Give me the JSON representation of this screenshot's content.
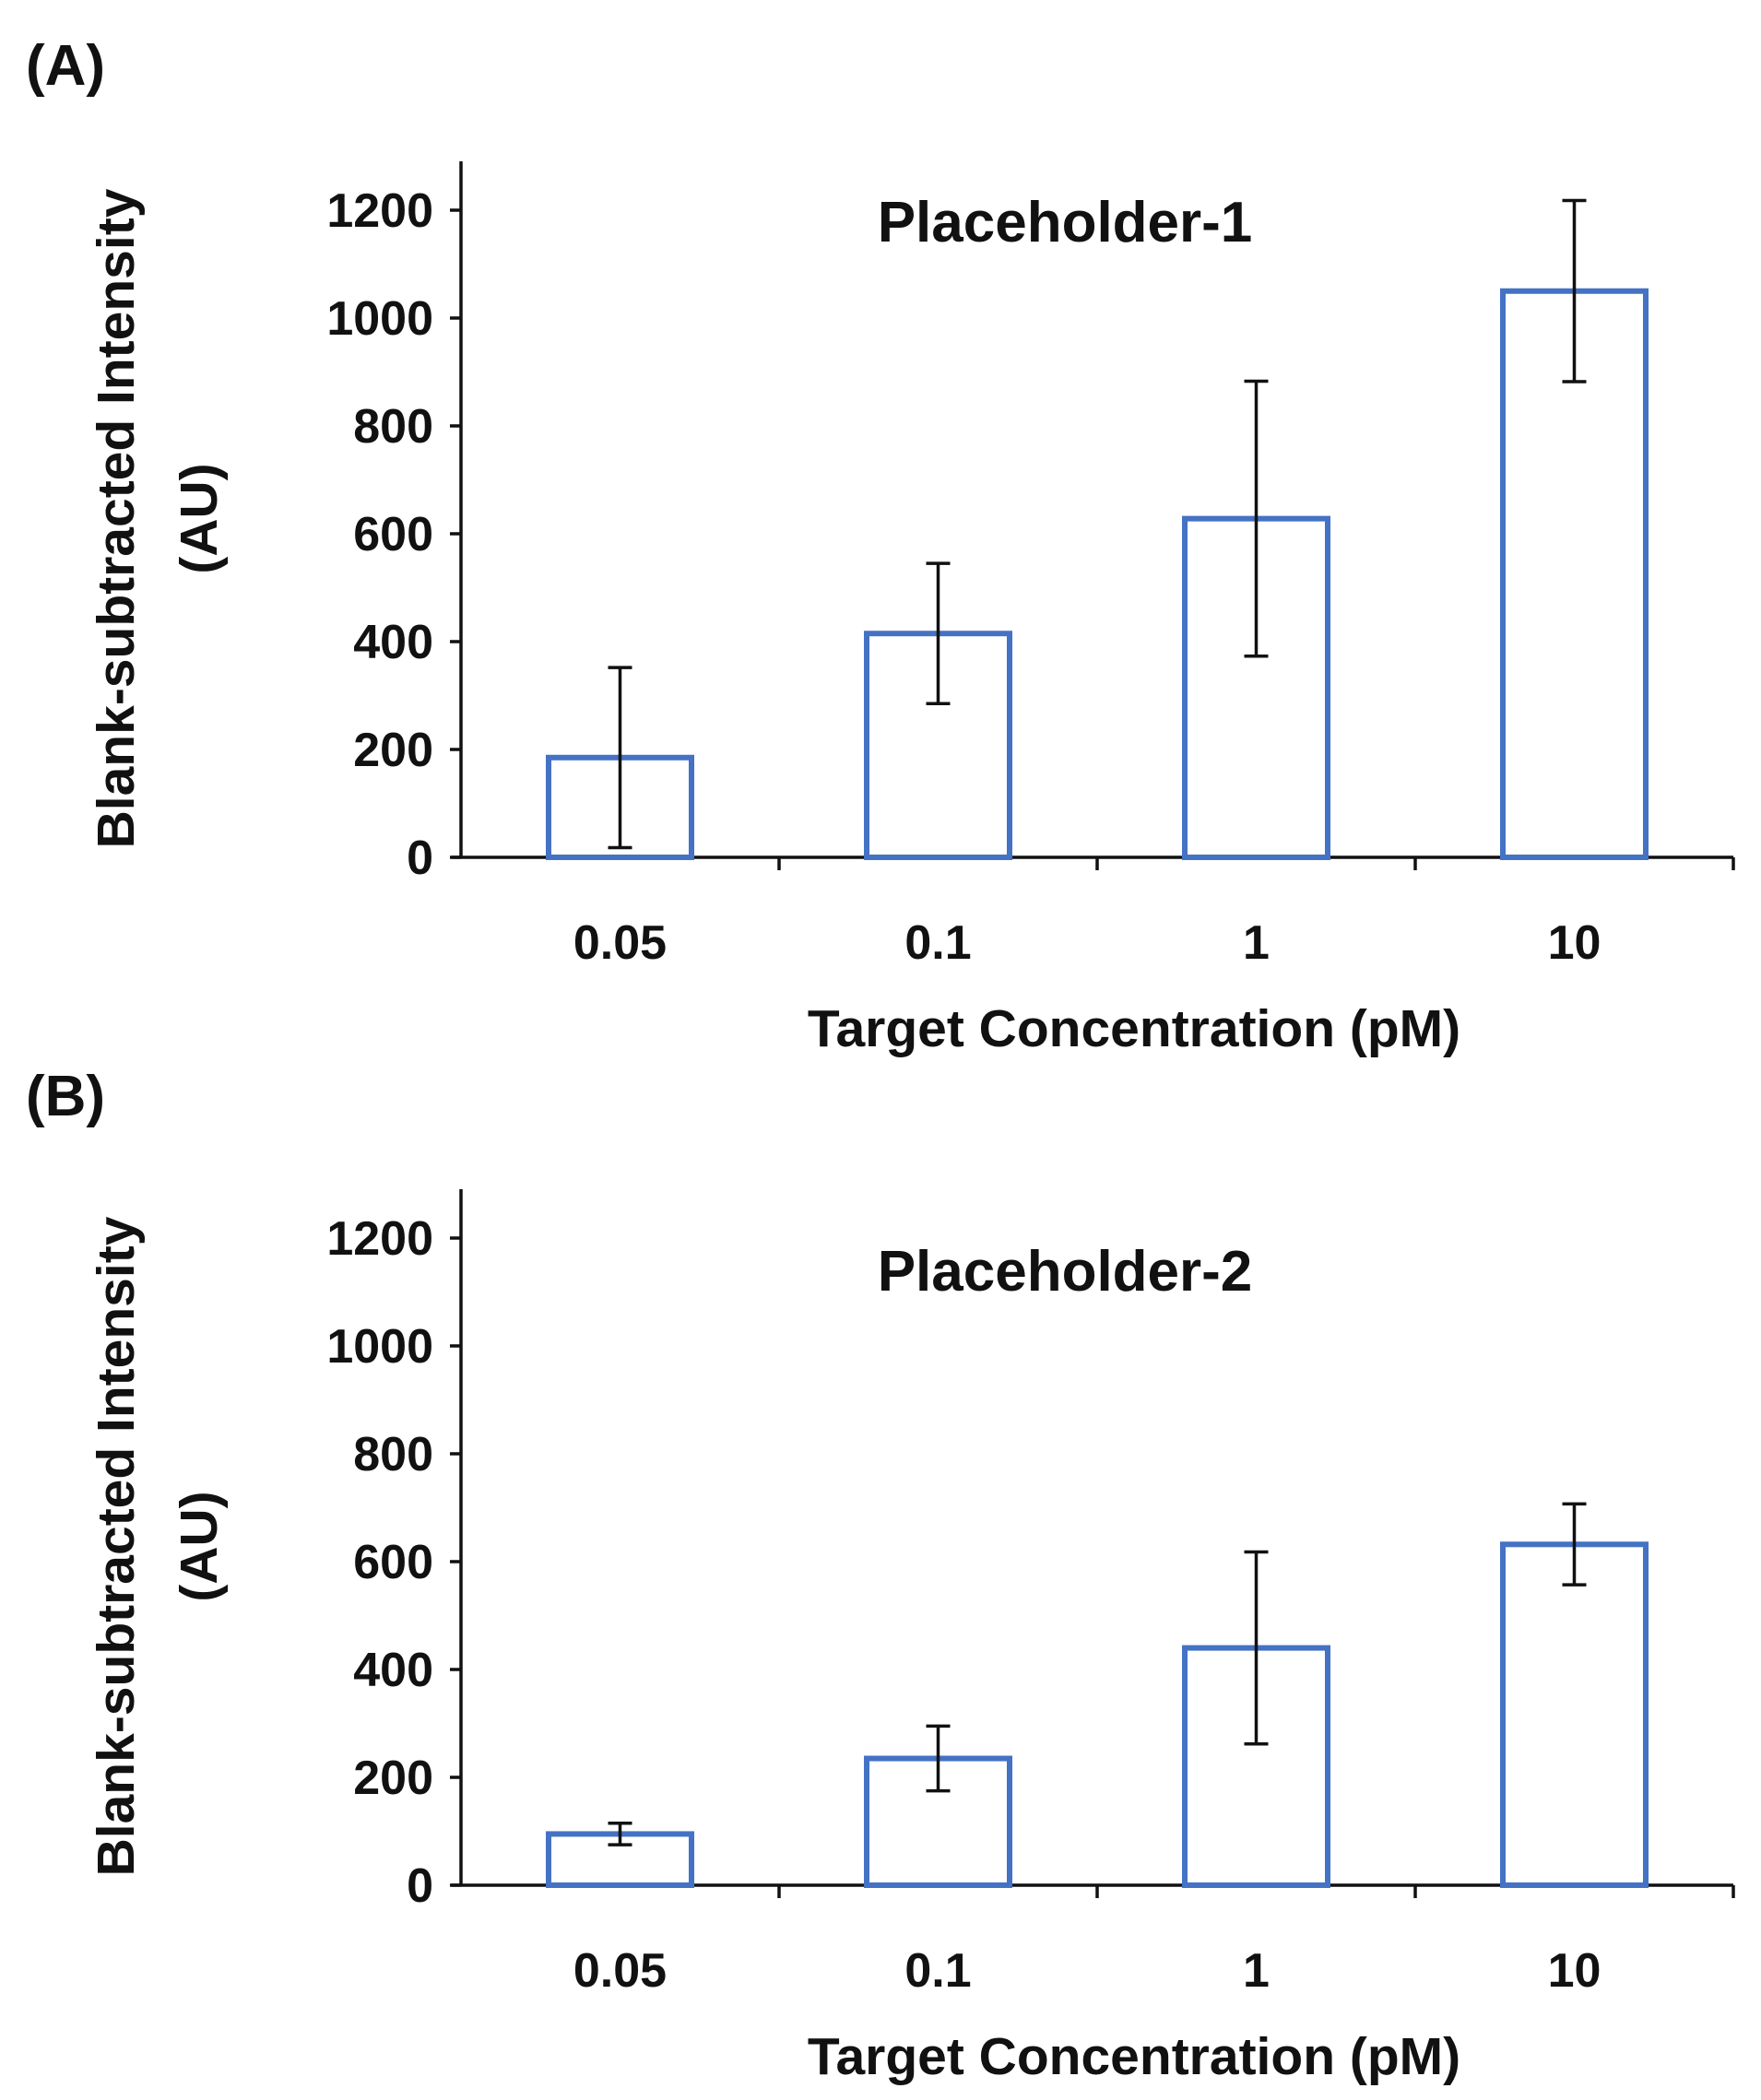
{
  "style": {
    "bar_stroke": "#4472C4",
    "axis_color": "#111111"
  },
  "chart_data": [
    {
      "type": "bar",
      "panel_label": "(A)",
      "title": "Placeholder-1",
      "xlabel": "Target Concentration (pM)",
      "ylabel_lines": [
        "Blank-subtracted Intensity",
        "(AU)"
      ],
      "categories": [
        "0.05",
        "0.1",
        "1",
        "10"
      ],
      "values": [
        185,
        415,
        628,
        1050
      ],
      "errors": [
        167,
        130,
        255,
        168
      ],
      "ylim": [
        0,
        1300
      ],
      "yticks": [
        0,
        200,
        400,
        600,
        800,
        1000,
        1200
      ],
      "grid": false
    },
    {
      "type": "bar",
      "panel_label": "(B)",
      "title": "Placeholder-2",
      "xlabel": "Target Concentration (pM)",
      "ylabel_lines": [
        "Blank-subtracted Intensity",
        "(AU)"
      ],
      "categories": [
        "0.05",
        "0.1",
        "1",
        "10"
      ],
      "values": [
        95,
        235,
        440,
        632
      ],
      "errors": [
        20,
        60,
        178,
        75
      ],
      "ylim": [
        0,
        1300
      ],
      "yticks": [
        0,
        200,
        400,
        600,
        800,
        1000,
        1200
      ],
      "grid": false
    }
  ]
}
